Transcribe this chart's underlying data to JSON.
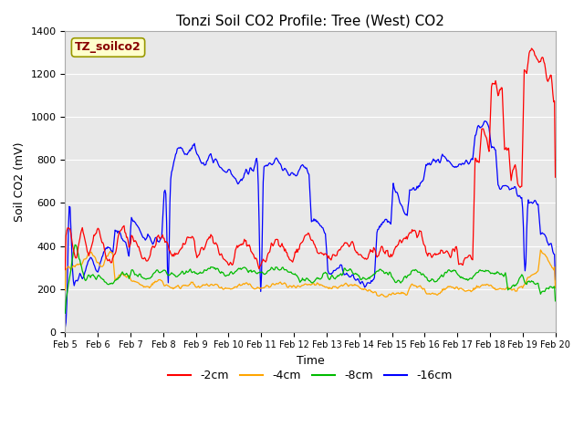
{
  "title": "Tonzi Soil CO2 Profile: Tree (West) CO2",
  "xlabel": "Time",
  "ylabel": "Soil CO2 (mV)",
  "ylim": [
    0,
    1400
  ],
  "yticks": [
    0,
    200,
    400,
    600,
    800,
    1000,
    1200,
    1400
  ],
  "colors": {
    "-2cm": "#ff0000",
    "-4cm": "#ffa500",
    "-8cm": "#00bb00",
    "-16cm": "#0000ff"
  },
  "legend_label": "TZ_soilco2",
  "legend_box_facecolor": "#ffffcc",
  "legend_box_edgecolor": "#999900",
  "legend_text_color": "#880000",
  "bg_color": "#e8e8e8",
  "fig_bg": "#ffffff",
  "xticklabels": [
    "Feb 5",
    "Feb 6",
    "Feb 7",
    "Feb 8",
    "Feb 9",
    "Feb 10",
    "Feb 11",
    "Feb 12",
    "Feb 13",
    "Feb 14",
    "Feb 15",
    "Feb 16",
    "Feb 17",
    "Feb 18",
    "Feb 19",
    "Feb 20"
  ],
  "grid_color": "#ffffff",
  "title_fontsize": 11,
  "axis_label_fontsize": 9,
  "tick_fontsize": 8
}
